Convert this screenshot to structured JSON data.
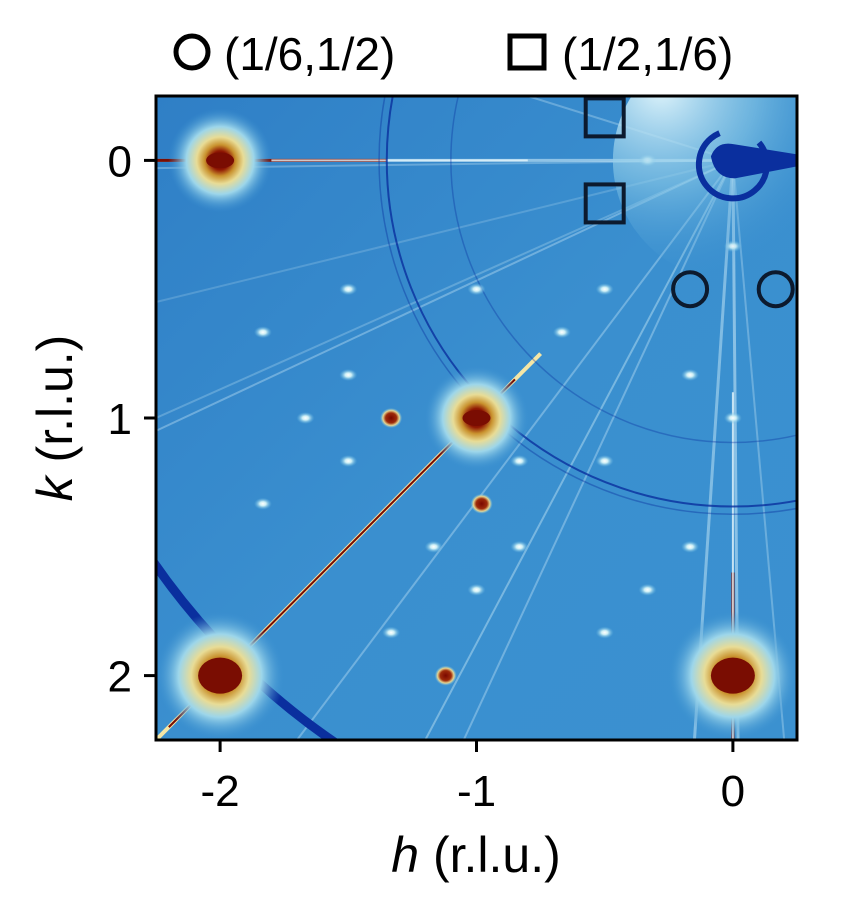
{
  "chart_data": {
    "type": "heatmap",
    "title": "",
    "xlabel": {
      "var": "h",
      "unit": " (r.l.u.)"
    },
    "ylabel": {
      "var": "k",
      "unit": " (r.l.u.)"
    },
    "xlim": [
      -2.25,
      0.25
    ],
    "ylim": [
      2.25,
      -0.25
    ],
    "y_inverted": true,
    "xticks": [
      {
        "value": -2,
        "label": "-2"
      },
      {
        "value": -1,
        "label": "-1"
      },
      {
        "value": 0,
        "label": "0"
      }
    ],
    "yticks": [
      {
        "value": 0,
        "label": "0"
      },
      {
        "value": 1,
        "label": "1"
      },
      {
        "value": 2,
        "label": "2"
      }
    ],
    "grid": false,
    "colormap": {
      "low": "#0a2f9e",
      "mid": "#3d93d1",
      "high": "#7a0d02"
    },
    "legend": {
      "placement": "top",
      "entries": [
        {
          "marker": "circle",
          "label": "(1/6,1/2)"
        },
        {
          "marker": "square",
          "label": "(1/2,1/6)"
        }
      ]
    },
    "bragg_peaks": [
      {
        "h": -2,
        "k": 0,
        "intensity": "high"
      },
      {
        "h": -1,
        "k": 1,
        "intensity": "high"
      },
      {
        "h": -2,
        "k": 2,
        "intensity": "high"
      },
      {
        "h": 0,
        "k": 2,
        "intensity": "high"
      }
    ],
    "superlattice_peaks": [
      {
        "h": -1.333,
        "k": 1.0,
        "intensity": "high"
      },
      {
        "h": -0.98,
        "k": 1.333,
        "intensity": "high"
      },
      {
        "h": -1.12,
        "k": 2.0,
        "intensity": "high"
      },
      {
        "h": -0.5,
        "k": 0.5
      },
      {
        "h": -0.667,
        "k": 0.667
      },
      {
        "h": -0.5,
        "k": 1.167
      },
      {
        "h": -0.5,
        "k": 1.833
      },
      {
        "h": -0.833,
        "k": 1.167
      },
      {
        "h": -0.833,
        "k": 1.5
      },
      {
        "h": -1.0,
        "k": 1.667
      },
      {
        "h": -1.167,
        "k": 1.5
      },
      {
        "h": -1.5,
        "k": 0.5
      },
      {
        "h": -1.5,
        "k": 0.833
      },
      {
        "h": -1.667,
        "k": 1.0
      },
      {
        "h": -1.833,
        "k": 0.667
      },
      {
        "h": -1.5,
        "k": 1.167
      },
      {
        "h": -1.333,
        "k": 1.833
      },
      {
        "h": -0.167,
        "k": 0.833
      },
      {
        "h": -0.167,
        "k": 1.5
      },
      {
        "h": 0,
        "k": 1.0
      },
      {
        "h": 0,
        "k": 0.333
      },
      {
        "h": -0.333,
        "k": 0
      },
      {
        "h": -1.0,
        "k": 0.5
      },
      {
        "h": -1.833,
        "k": 1.333
      },
      {
        "h": -0.333,
        "k": 1.667
      }
    ],
    "marked_peaks": [
      {
        "marker": "circle",
        "h": -0.167,
        "k": 0.5
      },
      {
        "marker": "circle",
        "h": 0.167,
        "k": 0.5
      },
      {
        "marker": "square",
        "h": -0.5,
        "k": -0.167
      },
      {
        "marker": "square",
        "h": -0.5,
        "k": 0.167
      }
    ],
    "powder_rings": [
      {
        "center_h": 0,
        "center_k": 0,
        "radius_rlu": 1.35
      },
      {
        "center_h": 0,
        "center_k": 0,
        "radius_rlu": 2.75
      }
    ]
  }
}
